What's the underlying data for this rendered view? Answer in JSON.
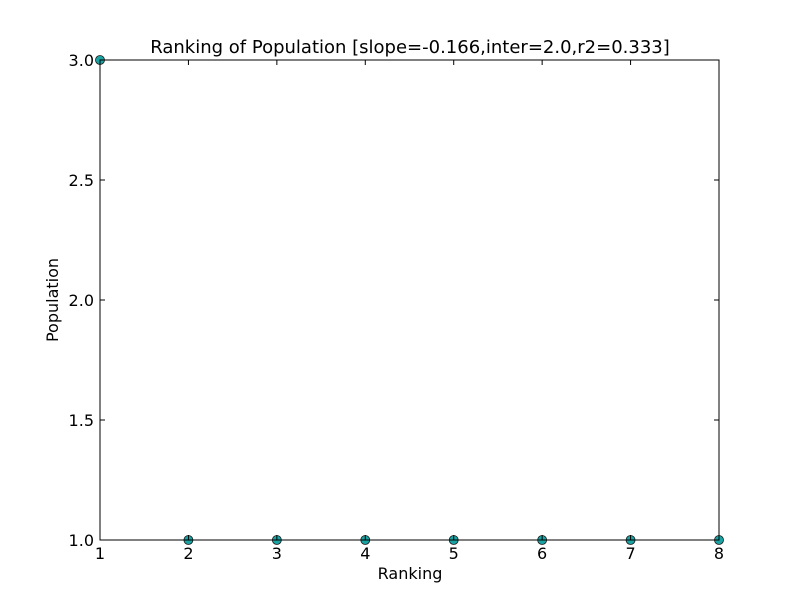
{
  "chart_data": {
    "type": "scatter",
    "title": "Ranking of Population [slope=-0.166,inter=2.0,r2=0.333]",
    "xlabel": "Ranking",
    "ylabel": "Population",
    "xlim": [
      1,
      8
    ],
    "ylim": [
      1.0,
      3.0
    ],
    "x_ticks": [
      1,
      2,
      3,
      4,
      5,
      6,
      7,
      8
    ],
    "x_tick_labels": [
      "1",
      "2",
      "3",
      "4",
      "5",
      "6",
      "7",
      "8"
    ],
    "y_ticks": [
      1.0,
      1.5,
      2.0,
      2.5,
      3.0
    ],
    "y_tick_labels": [
      "1.0",
      "1.5",
      "2.0",
      "2.5",
      "3.0"
    ],
    "grid": false,
    "series": [
      {
        "color": "#1aa3a3",
        "points": [
          {
            "x": 1,
            "y": 3.0
          },
          {
            "x": 2,
            "y": 1.0
          },
          {
            "x": 3,
            "y": 1.0
          },
          {
            "x": 4,
            "y": 1.0
          },
          {
            "x": 5,
            "y": 1.0
          },
          {
            "x": 6,
            "y": 1.0
          },
          {
            "x": 7,
            "y": 1.0
          },
          {
            "x": 8,
            "y": 1.0
          }
        ]
      }
    ]
  }
}
